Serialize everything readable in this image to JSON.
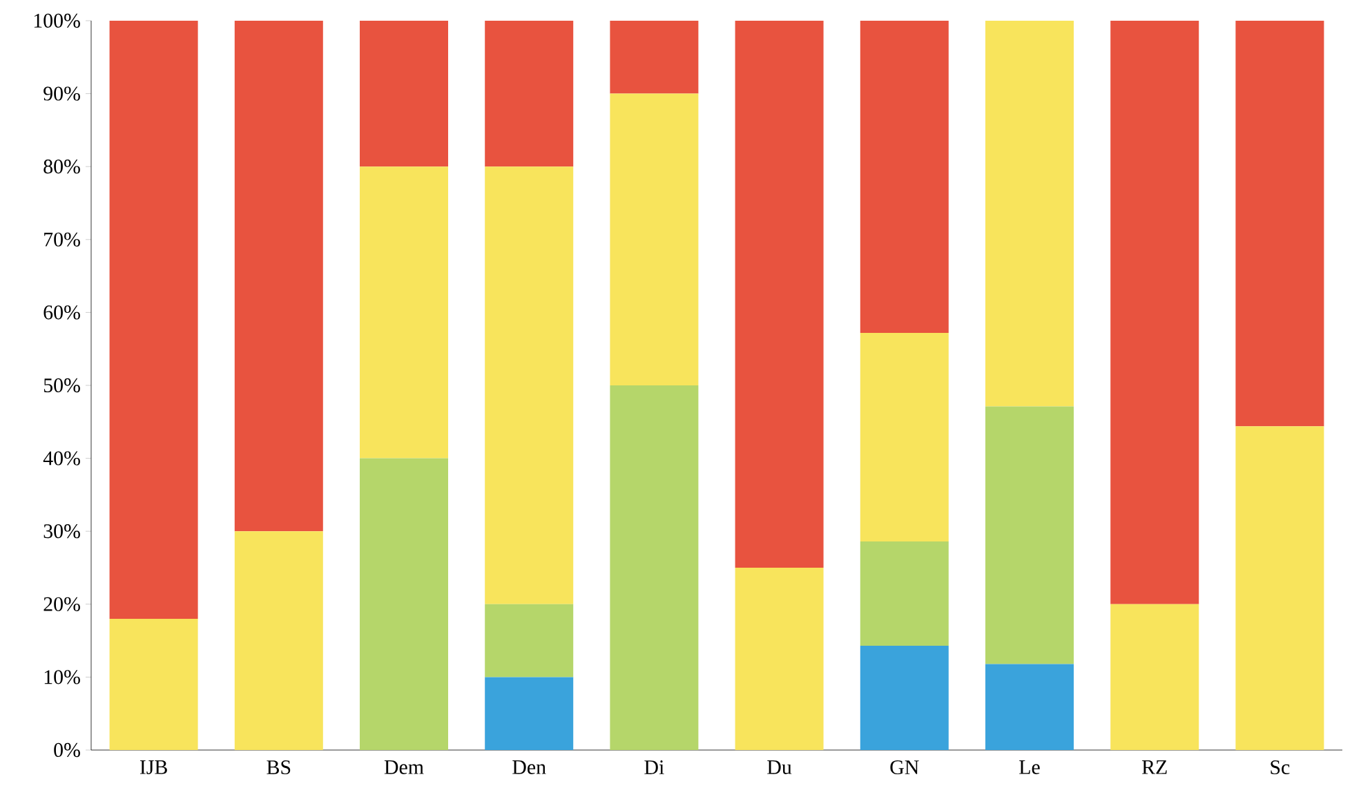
{
  "chart_data": {
    "type": "bar",
    "stacked": true,
    "categories": [
      "IJB",
      "BS",
      "Dem",
      "Den",
      "Di",
      "Du",
      "GN",
      "Le",
      "RZ",
      "Sc"
    ],
    "series": [
      {
        "color": "#3aa3dc",
        "values": [
          0,
          0,
          0,
          10,
          0,
          0,
          14.3,
          11.8,
          0,
          0
        ]
      },
      {
        "color": "#b5d66a",
        "values": [
          0,
          0,
          40,
          10,
          50,
          0,
          14.3,
          35.3,
          0,
          0
        ]
      },
      {
        "color": "#f8e45c",
        "values": [
          18,
          30,
          40,
          60,
          40,
          25,
          28.6,
          52.9,
          20,
          44.4
        ]
      },
      {
        "color": "#e8533f",
        "values": [
          82,
          70,
          20,
          20,
          10,
          75,
          42.8,
          0,
          80,
          55.6
        ]
      }
    ],
    "ylim": [
      0,
      100
    ],
    "yticks": [
      {
        "value": 0,
        "label": "0%"
      },
      {
        "value": 10,
        "label": "10%"
      },
      {
        "value": 20,
        "label": "20%"
      },
      {
        "value": 30,
        "label": "30%"
      },
      {
        "value": 40,
        "label": "40%"
      },
      {
        "value": 50,
        "label": "50%"
      },
      {
        "value": 60,
        "label": "60%"
      },
      {
        "value": 70,
        "label": "70%"
      },
      {
        "value": 80,
        "label": "80%"
      },
      {
        "value": 90,
        "label": "90%"
      },
      {
        "value": 100,
        "label": "100%"
      }
    ],
    "grid": false
  }
}
